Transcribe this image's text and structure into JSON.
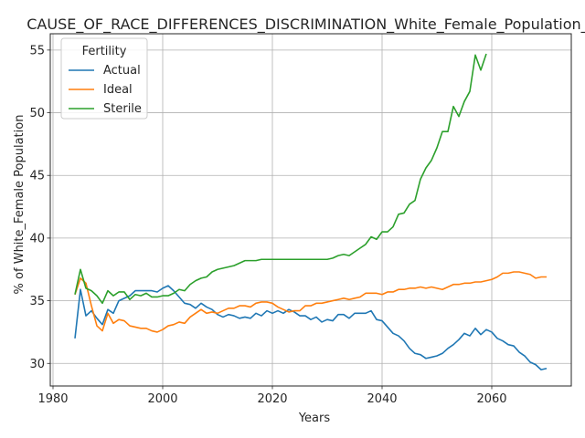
{
  "chart_data": {
    "type": "line",
    "title": "CAUSE_OF_RACE_DIFFERENCES_DISCRIMINATION_White_Female_Population_sc",
    "xlabel": "Years",
    "ylabel": "% of White_Female Population",
    "xlim": [
      1979.5,
      2074.5
    ],
    "ylim": [
      28.2,
      56.3
    ],
    "xticks": [
      1980,
      2000,
      2020,
      2040,
      2060
    ],
    "yticks": [
      30,
      35,
      40,
      45,
      50,
      55
    ],
    "grid": true,
    "legend": {
      "title": "Fertility",
      "position": "top-left"
    },
    "series": [
      {
        "name": "Actual",
        "color": "#1f77b4",
        "x": [
          1984,
          1985,
          1986,
          1987,
          1988,
          1989,
          1990,
          1991,
          1992,
          1993,
          1994,
          1995,
          1996,
          1997,
          1998,
          1999,
          2000,
          2001,
          2002,
          2003,
          2004,
          2005,
          2006,
          2007,
          2008,
          2009,
          2010,
          2011,
          2012,
          2013,
          2014,
          2015,
          2016,
          2017,
          2018,
          2019,
          2020,
          2021,
          2022,
          2023,
          2024,
          2025,
          2026,
          2027,
          2028,
          2029,
          2030,
          2031,
          2032,
          2033,
          2034,
          2035,
          2036,
          2037,
          2038,
          2039,
          2040,
          2041,
          2042,
          2043,
          2044,
          2045,
          2046,
          2047,
          2048,
          2049,
          2050,
          2051,
          2052,
          2053,
          2054,
          2055,
          2056,
          2057,
          2058,
          2059,
          2060,
          2061,
          2062,
          2063,
          2064,
          2065,
          2066,
          2067,
          2068,
          2069,
          2070
        ],
        "values": [
          32.0,
          35.9,
          33.8,
          34.2,
          33.6,
          33.1,
          34.3,
          34.0,
          35.0,
          35.2,
          35.4,
          35.8,
          35.8,
          35.8,
          35.8,
          35.7,
          36.0,
          36.2,
          35.8,
          35.3,
          34.8,
          34.7,
          34.4,
          34.8,
          34.5,
          34.3,
          33.9,
          33.7,
          33.9,
          33.8,
          33.6,
          33.7,
          33.6,
          34.0,
          33.8,
          34.2,
          34.0,
          34.2,
          34.0,
          34.3,
          34.1,
          33.8,
          33.8,
          33.5,
          33.7,
          33.3,
          33.5,
          33.4,
          33.9,
          33.9,
          33.6,
          34.0,
          34.0,
          34.0,
          34.2,
          33.5,
          33.4,
          32.9,
          32.4,
          32.2,
          31.8,
          31.2,
          30.8,
          30.7,
          30.4,
          30.5,
          30.6,
          30.8,
          31.2,
          31.5,
          31.9,
          32.4,
          32.2,
          32.8,
          32.3,
          32.7,
          32.5,
          32.0,
          31.8,
          31.5,
          31.4,
          30.9,
          30.6,
          30.1,
          29.9,
          29.5,
          29.6
        ]
      },
      {
        "name": "Ideal",
        "color": "#ff7f0e",
        "x": [
          1984,
          1985,
          1986,
          1987,
          1988,
          1989,
          1990,
          1991,
          1992,
          1993,
          1994,
          1995,
          1996,
          1997,
          1998,
          1999,
          2000,
          2001,
          2002,
          2003,
          2004,
          2005,
          2006,
          2007,
          2008,
          2009,
          2010,
          2011,
          2012,
          2013,
          2014,
          2015,
          2016,
          2017,
          2018,
          2019,
          2020,
          2021,
          2022,
          2023,
          2024,
          2025,
          2026,
          2027,
          2028,
          2029,
          2030,
          2031,
          2032,
          2033,
          2034,
          2035,
          2036,
          2037,
          2038,
          2039,
          2040,
          2041,
          2042,
          2043,
          2044,
          2045,
          2046,
          2047,
          2048,
          2049,
          2050,
          2051,
          2052,
          2053,
          2054,
          2055,
          2056,
          2057,
          2058,
          2059,
          2060,
          2061,
          2062,
          2063,
          2064,
          2065,
          2066,
          2067,
          2068,
          2069,
          2070
        ],
        "values": [
          35.5,
          36.8,
          36.4,
          34.6,
          33.0,
          32.6,
          34.0,
          33.2,
          33.5,
          33.4,
          33.0,
          32.9,
          32.8,
          32.8,
          32.6,
          32.5,
          32.7,
          33.0,
          33.1,
          33.3,
          33.2,
          33.7,
          34.0,
          34.3,
          34.0,
          34.1,
          34.0,
          34.2,
          34.4,
          34.4,
          34.6,
          34.6,
          34.5,
          34.8,
          34.9,
          34.9,
          34.8,
          34.5,
          34.3,
          34.1,
          34.2,
          34.2,
          34.6,
          34.6,
          34.8,
          34.8,
          34.9,
          35.0,
          35.1,
          35.2,
          35.1,
          35.2,
          35.3,
          35.6,
          35.6,
          35.6,
          35.5,
          35.7,
          35.7,
          35.9,
          35.9,
          36.0,
          36.0,
          36.1,
          36.0,
          36.1,
          36.0,
          35.9,
          36.1,
          36.3,
          36.3,
          36.4,
          36.4,
          36.5,
          36.5,
          36.6,
          36.7,
          36.9,
          37.2,
          37.2,
          37.3,
          37.3,
          37.2,
          37.1,
          36.8,
          36.9,
          36.9
        ]
      },
      {
        "name": "Sterile",
        "color": "#2ca02c",
        "x": [
          1984,
          1985,
          1986,
          1987,
          1988,
          1989,
          1990,
          1991,
          1992,
          1993,
          1994,
          1995,
          1996,
          1997,
          1998,
          1999,
          2000,
          2001,
          2002,
          2003,
          2004,
          2005,
          2006,
          2007,
          2008,
          2009,
          2010,
          2011,
          2012,
          2013,
          2014,
          2015,
          2016,
          2017,
          2018,
          2019,
          2020,
          2021,
          2022,
          2023,
          2024,
          2025,
          2026,
          2027,
          2028,
          2029,
          2030,
          2031,
          2032,
          2033,
          2034,
          2035,
          2036,
          2037,
          2038,
          2039,
          2040,
          2041,
          2042,
          2043,
          2044,
          2045,
          2046,
          2047,
          2048,
          2049,
          2050,
          2051,
          2052,
          2053,
          2054,
          2055,
          2056,
          2057,
          2058,
          2059
        ],
        "values": [
          35.5,
          37.5,
          36.0,
          35.8,
          35.4,
          34.8,
          35.8,
          35.4,
          35.7,
          35.7,
          35.1,
          35.5,
          35.4,
          35.6,
          35.3,
          35.3,
          35.4,
          35.4,
          35.6,
          35.9,
          35.8,
          36.3,
          36.6,
          36.8,
          36.9,
          37.3,
          37.5,
          37.6,
          37.7,
          37.8,
          38.0,
          38.2,
          38.2,
          38.2,
          38.3,
          38.3,
          38.3,
          38.3,
          38.3,
          38.3,
          38.3,
          38.3,
          38.3,
          38.3,
          38.3,
          38.3,
          38.3,
          38.4,
          38.6,
          38.7,
          38.6,
          38.9,
          39.2,
          39.5,
          40.1,
          39.9,
          40.5,
          40.5,
          40.9,
          41.9,
          42.0,
          42.7,
          43.0,
          44.7,
          45.6,
          46.2,
          47.2,
          48.5,
          48.5,
          50.5,
          49.7,
          50.9,
          51.7,
          54.6,
          53.4,
          54.7
        ]
      }
    ]
  }
}
